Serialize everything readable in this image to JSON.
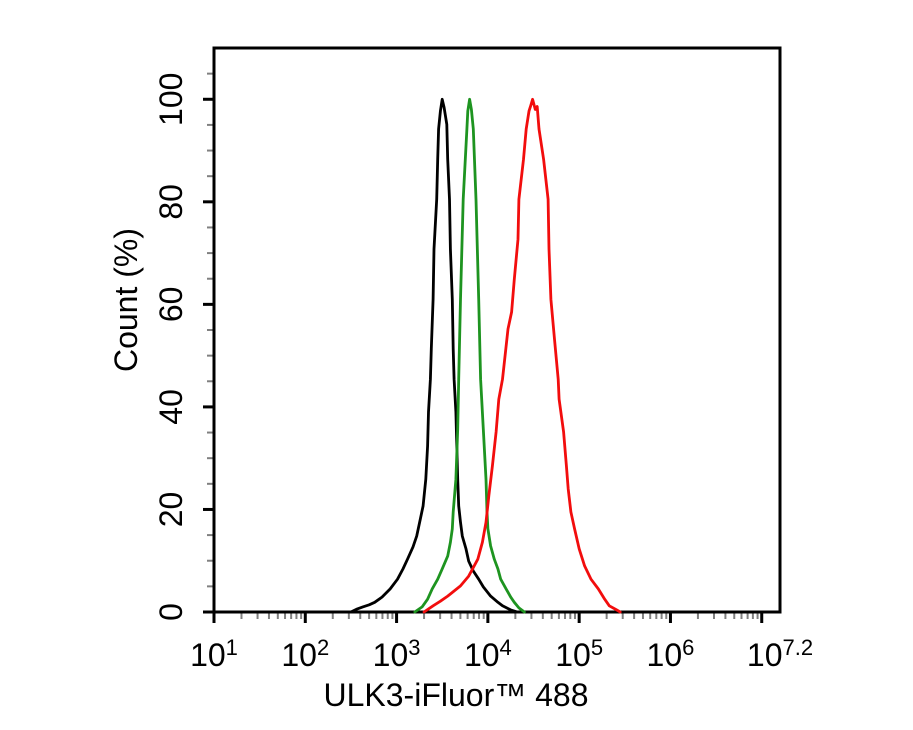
{
  "figure": {
    "background": "#ffffff",
    "axis_color": "#000000",
    "minor_tick_color": "#808080"
  },
  "chart_data": {
    "type": "line",
    "chart_kind": "flow-cytometry-overlay-histogram",
    "title": "",
    "xlabel": "ULK3-iFluor™ 488",
    "ylabel": "Count (%)",
    "x_scale": "log10",
    "x_range_log10": [
      1,
      7.2
    ],
    "x_major_ticks_log10": [
      1,
      2,
      3,
      4,
      5,
      6,
      7
    ],
    "x_tick_labels": [
      {
        "log10": 1,
        "base": "10",
        "exp": "1"
      },
      {
        "log10": 2,
        "base": "10",
        "exp": "2"
      },
      {
        "log10": 3,
        "base": "10",
        "exp": "3"
      },
      {
        "log10": 4,
        "base": "10",
        "exp": "4"
      },
      {
        "log10": 5,
        "base": "10",
        "exp": "5"
      },
      {
        "log10": 6,
        "base": "10",
        "exp": "6"
      },
      {
        "log10": 7.2,
        "base": "10",
        "exp": "7.2"
      }
    ],
    "y_range": [
      0,
      110
    ],
    "y_major_ticks": [
      0,
      20,
      40,
      60,
      80,
      100
    ],
    "y_minor_tick_step": 5,
    "grid": false,
    "legend": null,
    "series": [
      {
        "name": "black-curve",
        "color": "#000000",
        "peak_log10": 3.5,
        "peak_height_pct": 100,
        "points_log10_pct": [
          [
            2.5,
            0
          ],
          [
            2.57,
            0.6
          ],
          [
            2.63,
            1.0
          ],
          [
            2.7,
            1.4
          ],
          [
            2.76,
            1.9
          ],
          [
            2.84,
            2.9
          ],
          [
            2.93,
            4.5
          ],
          [
            3.01,
            6.4
          ],
          [
            3.07,
            8.4
          ],
          [
            3.12,
            10.3
          ],
          [
            3.18,
            12.7
          ],
          [
            3.22,
            14.8
          ],
          [
            3.26,
            18.1
          ],
          [
            3.29,
            20.7
          ],
          [
            3.32,
            25.9
          ],
          [
            3.34,
            32.4
          ],
          [
            3.35,
            39.0
          ],
          [
            3.37,
            45.4
          ],
          [
            3.38,
            51.3
          ],
          [
            3.4,
            61.0
          ],
          [
            3.41,
            70.8
          ],
          [
            3.44,
            80.5
          ],
          [
            3.45,
            88.3
          ],
          [
            3.46,
            94.2
          ],
          [
            3.48,
            97.7
          ],
          [
            3.5,
            100
          ],
          [
            3.52,
            98.4
          ],
          [
            3.55,
            95.1
          ],
          [
            3.56,
            88.3
          ],
          [
            3.58,
            80.5
          ],
          [
            3.59,
            70.8
          ],
          [
            3.61,
            61.0
          ],
          [
            3.62,
            51.3
          ],
          [
            3.63,
            45.4
          ],
          [
            3.65,
            39.0
          ],
          [
            3.66,
            32.4
          ],
          [
            3.67,
            25.9
          ],
          [
            3.68,
            20.7
          ],
          [
            3.7,
            17.5
          ],
          [
            3.72,
            14.8
          ],
          [
            3.76,
            12.3
          ],
          [
            3.79,
            9.9
          ],
          [
            3.84,
            8.0
          ],
          [
            3.9,
            6.4
          ],
          [
            3.95,
            4.9
          ],
          [
            4.03,
            3.1
          ],
          [
            4.11,
            1.9
          ],
          [
            4.16,
            1.2
          ],
          [
            4.25,
            0.4
          ],
          [
            4.32,
            0
          ]
        ]
      },
      {
        "name": "green-curve",
        "color": "#1e9420",
        "peak_log10": 3.8,
        "peak_height_pct": 100,
        "points_log10_pct": [
          [
            3.2,
            0
          ],
          [
            3.28,
            1.0
          ],
          [
            3.34,
            2.5
          ],
          [
            3.39,
            4.5
          ],
          [
            3.45,
            6.4
          ],
          [
            3.5,
            8.4
          ],
          [
            3.56,
            10.9
          ],
          [
            3.59,
            13.6
          ],
          [
            3.61,
            16.2
          ],
          [
            3.62,
            19.5
          ],
          [
            3.65,
            25.9
          ],
          [
            3.67,
            35.7
          ],
          [
            3.68,
            45.4
          ],
          [
            3.7,
            61.0
          ],
          [
            3.73,
            80.5
          ],
          [
            3.77,
            94.2
          ],
          [
            3.78,
            97.7
          ],
          [
            3.8,
            100
          ],
          [
            3.82,
            98.0
          ],
          [
            3.84,
            94.2
          ],
          [
            3.87,
            80.5
          ],
          [
            3.9,
            61.0
          ],
          [
            3.92,
            45.4
          ],
          [
            3.95,
            35.7
          ],
          [
            3.98,
            25.9
          ],
          [
            3.99,
            19.5
          ],
          [
            4.0,
            16.2
          ],
          [
            4.03,
            12.9
          ],
          [
            4.07,
            10.3
          ],
          [
            4.11,
            8.4
          ],
          [
            4.14,
            6.4
          ],
          [
            4.2,
            4.5
          ],
          [
            4.25,
            2.9
          ],
          [
            4.29,
            1.9
          ],
          [
            4.34,
            0.8
          ],
          [
            4.4,
            0
          ]
        ]
      },
      {
        "name": "red-curve",
        "color": "#f20d0d",
        "peak_log10": 4.49,
        "peak_height_pct": 100,
        "points_log10_pct": [
          [
            3.3,
            0
          ],
          [
            3.4,
            1.2
          ],
          [
            3.48,
            2.1
          ],
          [
            3.56,
            3.1
          ],
          [
            3.63,
            4.1
          ],
          [
            3.7,
            5.1
          ],
          [
            3.79,
            7.0
          ],
          [
            3.89,
            10.3
          ],
          [
            3.94,
            13.6
          ],
          [
            3.98,
            17.5
          ],
          [
            4.01,
            22.6
          ],
          [
            4.05,
            28.5
          ],
          [
            4.09,
            35.1
          ],
          [
            4.12,
            41.5
          ],
          [
            4.16,
            45.4
          ],
          [
            4.22,
            55.2
          ],
          [
            4.26,
            58.5
          ],
          [
            4.29,
            64.9
          ],
          [
            4.33,
            72.7
          ],
          [
            4.34,
            80.5
          ],
          [
            4.39,
            88.3
          ],
          [
            4.42,
            94.2
          ],
          [
            4.45,
            97.7
          ],
          [
            4.47,
            98.8
          ],
          [
            4.49,
            100
          ],
          [
            4.52,
            98.0
          ],
          [
            4.54,
            98.6
          ],
          [
            4.56,
            94.2
          ],
          [
            4.61,
            88.3
          ],
          [
            4.66,
            80.5
          ],
          [
            4.67,
            70.8
          ],
          [
            4.69,
            61.0
          ],
          [
            4.73,
            53.2
          ],
          [
            4.77,
            45.4
          ],
          [
            4.78,
            41.5
          ],
          [
            4.83,
            35.1
          ],
          [
            4.86,
            28.5
          ],
          [
            4.88,
            24.0
          ],
          [
            4.91,
            19.5
          ],
          [
            4.95,
            16.2
          ],
          [
            5.0,
            12.3
          ],
          [
            5.06,
            9.0
          ],
          [
            5.13,
            6.4
          ],
          [
            5.21,
            4.5
          ],
          [
            5.28,
            2.5
          ],
          [
            5.33,
            1.2
          ],
          [
            5.41,
            0.4
          ],
          [
            5.45,
            0
          ]
        ]
      }
    ]
  }
}
